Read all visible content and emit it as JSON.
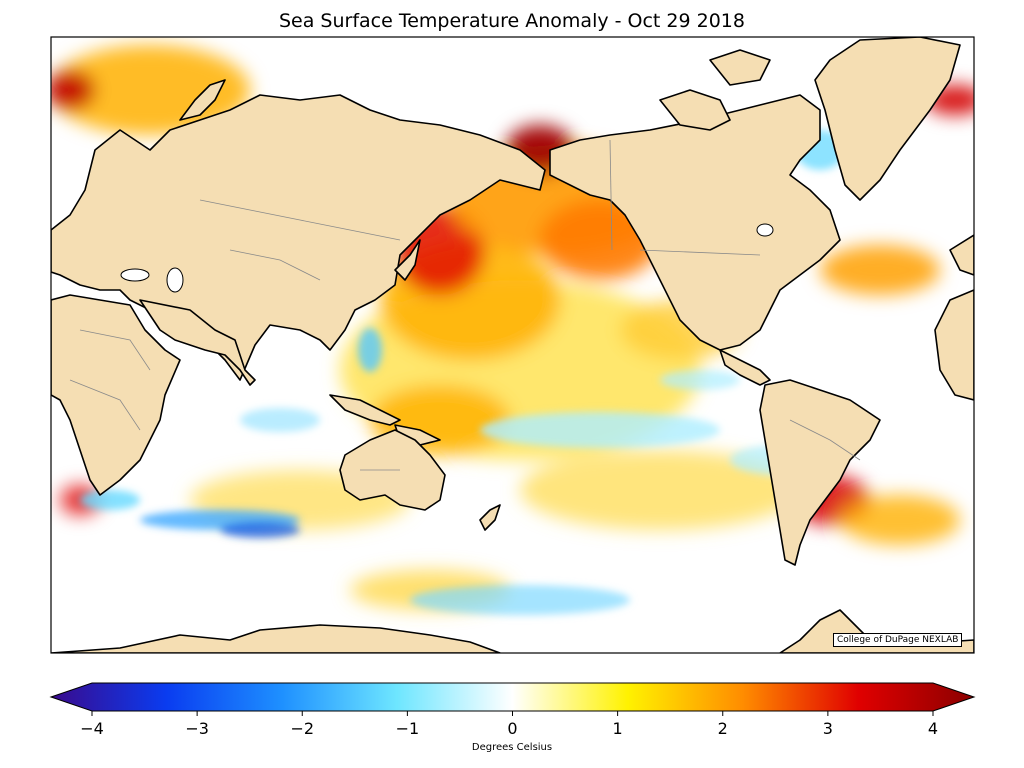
{
  "title": "Sea Surface Temperature Anomaly - Oct 29 2018",
  "credit": "College of DuPage NEXLAB",
  "colorbar": {
    "label": "Degrees Celsius",
    "min": -4,
    "max": 4,
    "ticks": [
      "−4",
      "−3",
      "−2",
      "−1",
      "0",
      "1",
      "2",
      "3",
      "4"
    ],
    "extend": "both",
    "colors": [
      "#3a0a8c",
      "#0a3cf0",
      "#1e90ff",
      "#6ee6ff",
      "#ffffff",
      "#fff200",
      "#ff8c00",
      "#e00000",
      "#8b0000"
    ]
  },
  "land_color": "#f5deb3"
}
